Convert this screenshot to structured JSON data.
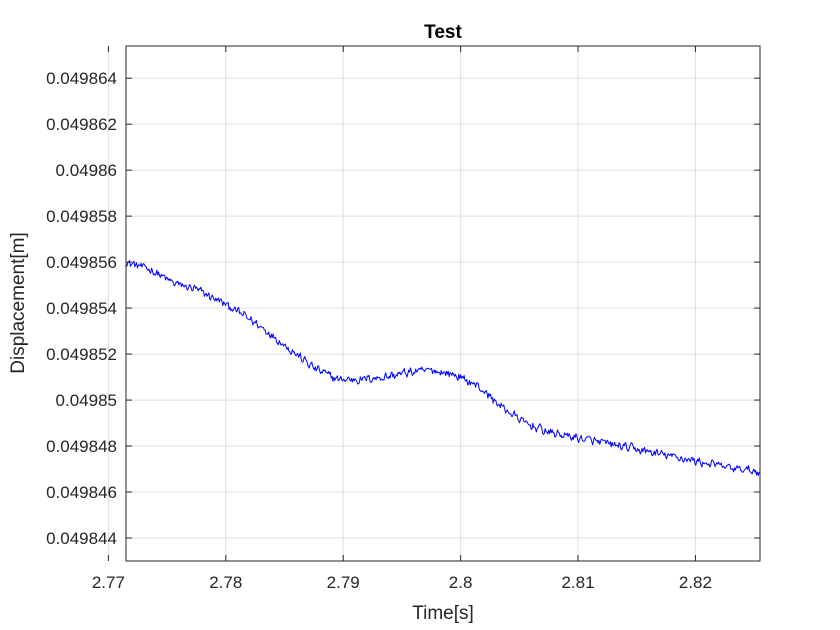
{
  "chart_data": {
    "type": "line",
    "title": "Test",
    "xlabel": "Time[s]",
    "ylabel": "Displacement[m]",
    "xlim": [
      2.7715,
      2.8255
    ],
    "ylim": [
      0.049843,
      0.0498654
    ],
    "grid": true,
    "xticks": [
      2.77,
      2.78,
      2.79,
      2.8,
      2.81,
      2.82
    ],
    "xtick_labels": [
      "2.77",
      "2.78",
      "2.79",
      "2.8",
      "2.81",
      "2.82"
    ],
    "yticks": [
      0.049844,
      0.049846,
      0.049848,
      0.04985,
      0.049852,
      0.049854,
      0.049856,
      0.049858,
      0.04986,
      0.049862,
      0.049864
    ],
    "ytick_labels": [
      "0.049844",
      "0.049846",
      "0.049848",
      "0.04985",
      "0.049852",
      "0.049854",
      "0.049856",
      "0.049858",
      "0.04986",
      "0.049862",
      "0.049864"
    ],
    "series": [
      {
        "color": "#0000ff",
        "x": [
          2.7715,
          2.7735,
          2.7755,
          2.7775,
          2.7795,
          2.7815,
          2.7835,
          2.7855,
          2.7875,
          2.7895,
          2.7915,
          2.7935,
          2.7955,
          2.7975,
          2.7995,
          2.8015,
          2.8035,
          2.8055,
          2.8075,
          2.8095,
          2.8115,
          2.8135,
          2.8155,
          2.8175,
          2.8195,
          2.8215,
          2.8235,
          2.8255
        ],
        "y": [
          0.049856,
          0.0498557,
          0.0498551,
          0.0498548,
          0.0498543,
          0.0498537,
          0.049853,
          0.0498522,
          0.0498514,
          0.0498509,
          0.0498509,
          0.049851,
          0.0498512,
          0.0498513,
          0.0498511,
          0.0498506,
          0.0498497,
          0.049849,
          0.0498486,
          0.0498484,
          0.0498482,
          0.049848,
          0.0498478,
          0.0498476,
          0.0498474,
          0.0498472,
          0.049847,
          0.0498469
        ]
      }
    ]
  }
}
